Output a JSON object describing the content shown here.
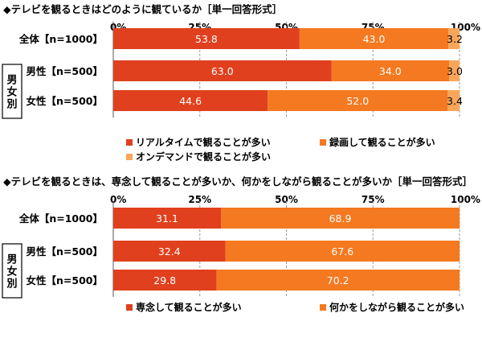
{
  "chart_data": [
    {
      "type": "bar",
      "orientation": "horizontal",
      "stacked": true,
      "title": "◆テレビを観るときはどのように観ているか［単一回答形式］",
      "xlim": [
        0,
        100
      ],
      "x_ticks": [
        "0%",
        "25%",
        "50%",
        "75%",
        "100%"
      ],
      "categories": [
        "全体【n=1000】",
        "男性【n=500】",
        "女性【n=500】"
      ],
      "group_label": "男女別",
      "series": [
        {
          "name": "リアルタイムで観ることが多い",
          "values": [
            53.8,
            63.0,
            44.6
          ],
          "color": "#e0401e"
        },
        {
          "name": "録画して観ることが多い",
          "values": [
            43.0,
            34.0,
            52.0
          ],
          "color": "#f47920"
        },
        {
          "name": "オンデマンドで観ることが多い",
          "values": [
            3.2,
            3.0,
            3.4
          ],
          "color": "#f9a65a"
        }
      ],
      "labels": [
        [
          "53.8",
          "43.0",
          "3.2"
        ],
        [
          "63.0",
          "34.0",
          "3.0"
        ],
        [
          "44.6",
          "52.0",
          "3.4"
        ]
      ],
      "legend": "bottom",
      "grid": true
    },
    {
      "type": "bar",
      "orientation": "horizontal",
      "stacked": true,
      "title": "◆テレビを観るときは、専念して観ることが多いか、何かをしながら観ることが多いか［単一回答形式］",
      "xlim": [
        0,
        100
      ],
      "x_ticks": [
        "0%",
        "25%",
        "50%",
        "75%",
        "100%"
      ],
      "categories": [
        "全体【n=1000】",
        "男性【n=500】",
        "女性【n=500】"
      ],
      "group_label": "男女別",
      "series": [
        {
          "name": "専念して観ることが多い",
          "values": [
            31.1,
            32.4,
            29.8
          ],
          "color": "#e0401e"
        },
        {
          "name": "何かをしながら観ることが多い",
          "values": [
            68.9,
            67.6,
            70.2
          ],
          "color": "#f47920"
        }
      ],
      "labels": [
        [
          "31.1",
          "68.9"
        ],
        [
          "32.4",
          "67.6"
        ],
        [
          "29.8",
          "70.2"
        ]
      ],
      "legend": "bottom",
      "grid": true
    }
  ]
}
